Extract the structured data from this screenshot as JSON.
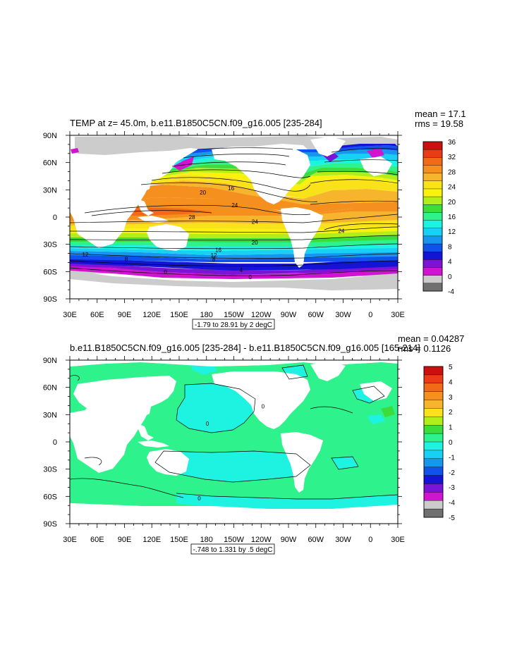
{
  "colors": {
    "land": "#ffffff",
    "ice": "#cccccc",
    "axis": "#000000",
    "contour": "#000000"
  },
  "chart_data": [
    {
      "type": "heatmap",
      "title": "TEMP at z=  45.0m, b.e11.B1850C5CN.f09_g16.005 [235-284]",
      "stats": {
        "mean": "mean = 17.1",
        "rms": "rms = 19.58"
      },
      "xlabel": "",
      "ylabel": "",
      "x_ticks": [
        "30E",
        "60E",
        "90E",
        "120E",
        "150E",
        "180",
        "150W",
        "120W",
        "90W",
        "60W",
        "30W",
        "0",
        "30E"
      ],
      "y_ticks": [
        "90N",
        "60N",
        "30N",
        "0",
        "30S",
        "60S",
        "90S"
      ],
      "x_range_deg_east": [
        30,
        390
      ],
      "y_range_deg_north": [
        -90,
        90
      ],
      "contour_info": "-1.79 to 28.91 by 2 degC",
      "colorbar": {
        "labels": [
          "36",
          "32",
          "28",
          "24",
          "20",
          "16",
          "12",
          "8",
          "4",
          "0",
          "-4"
        ],
        "colors": [
          "#cc1010",
          "#ec3a16",
          "#f06a18",
          "#f5901e",
          "#f6b52c",
          "#fae21a",
          "#f8f20e",
          "#b4ee1a",
          "#3cdc3c",
          "#2ef28c",
          "#1ef2e0",
          "#18d0f4",
          "#1696ee",
          "#1252ec",
          "#1414d4",
          "#7c14d8",
          "#d014d2",
          "#cccccc",
          "#707070"
        ]
      },
      "contour_labels": [
        {
          "text": "20",
          "lon": 176,
          "lat": 27
        },
        {
          "text": "16",
          "lon": 207,
          "lat": 32
        },
        {
          "text": "24",
          "lon": 211,
          "lat": 13
        },
        {
          "text": "28",
          "lon": 164,
          "lat": 0
        },
        {
          "text": "24",
          "lon": 233,
          "lat": -5
        },
        {
          "text": "20",
          "lon": 233,
          "lat": -28
        },
        {
          "text": "16",
          "lon": 193,
          "lat": -36
        },
        {
          "text": "12",
          "lon": 188,
          "lat": -42
        },
        {
          "text": "8",
          "lon": 188,
          "lat": -46
        },
        {
          "text": "12",
          "lon": 47,
          "lat": -41
        },
        {
          "text": "8",
          "lon": 92,
          "lat": -46
        },
        {
          "text": "0",
          "lon": 135,
          "lat": -60
        },
        {
          "text": "0",
          "lon": 228,
          "lat": -66
        },
        {
          "text": "24",
          "lon": 328,
          "lat": -15
        },
        {
          "text": "4",
          "lon": 218,
          "lat": -58
        }
      ]
    },
    {
      "type": "heatmap",
      "title": "b.e11.B1850C5CN.f09_g16.005 [235-284] - b.e11.B1850C5CN.f09_g16.005 [165-214]",
      "stats": {
        "mean": "mean = 0.04287",
        "rms": "rms = 0.1126"
      },
      "xlabel": "",
      "ylabel": "",
      "x_ticks": [
        "30E",
        "60E",
        "90E",
        "120E",
        "150E",
        "180",
        "150W",
        "120W",
        "90W",
        "60W",
        "30W",
        "0",
        "30E"
      ],
      "y_ticks": [
        "90N",
        "60N",
        "30N",
        "0",
        "30S",
        "60S",
        "90S"
      ],
      "x_range_deg_east": [
        30,
        390
      ],
      "y_range_deg_north": [
        -90,
        90
      ],
      "contour_info": "-.748 to 1.331 by .5 degC",
      "colorbar": {
        "labels": [
          "5",
          "4",
          "3",
          "2",
          "1",
          "0",
          "-1",
          "-2",
          "-3",
          "-4",
          "-5"
        ],
        "colors": [
          "#cc1010",
          "#ec3a16",
          "#f06a18",
          "#f5901e",
          "#f6b52c",
          "#fae21a",
          "#b4ee1a",
          "#3cdc3c",
          "#2ef28c",
          "#1ef2e0",
          "#18d0f4",
          "#1696ee",
          "#1252ec",
          "#1414d4",
          "#7c14d8",
          "#d014d2",
          "#cccccc",
          "#707070"
        ]
      },
      "contour_labels": [
        {
          "text": "0",
          "lon": 181,
          "lat": 20
        },
        {
          "text": "0",
          "lon": 172,
          "lat": -62
        },
        {
          "text": "0",
          "lon": 242,
          "lat": 39
        }
      ]
    }
  ]
}
